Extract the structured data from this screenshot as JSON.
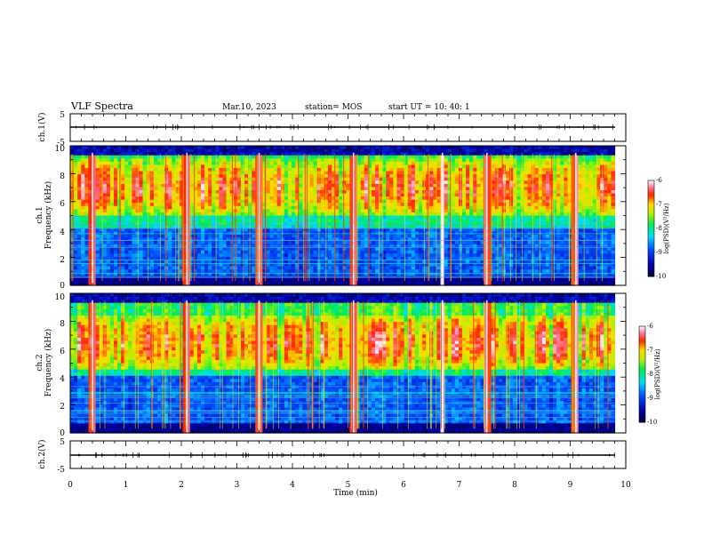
{
  "header": {
    "title": "VLF Spectra",
    "date": "Mar.10, 2023",
    "station": "station= MOS",
    "start": "start  UT  =    10: 40: 1"
  },
  "chart_data": {
    "type": "heatmap",
    "x_label": "Time  (min)",
    "x_range": [
      0,
      10
    ],
    "x_ticks": [
      "0",
      "1",
      "2",
      "3",
      "4",
      "5",
      "6",
      "7",
      "8",
      "9",
      "10"
    ],
    "x_data_extent": [
      0,
      9.8
    ],
    "panels": [
      {
        "id": "ch1_wave",
        "kind": "line",
        "ylabel": "ch.1(V)",
        "ylim": [
          -5,
          5
        ],
        "y_ticks": [
          "5",
          "-5"
        ],
        "baseline": 0
      },
      {
        "id": "ch1_spec",
        "kind": "spectrogram",
        "ylabel_top": "ch.1",
        "ylabel": "Frequency (kHz)",
        "ylim": [
          0,
          10
        ],
        "y_ticks": [
          "0",
          "2",
          "4",
          "6",
          "8",
          "10"
        ],
        "colorbar": {
          "label": "log(PSD)(V²/Hz)",
          "range": [
            -10,
            -6
          ],
          "ticks": [
            "-6",
            "-7",
            "-8",
            "-9",
            "-10"
          ]
        },
        "intense_band_khz": [
          5,
          9
        ],
        "noise_band_khz": [
          0,
          4.5
        ],
        "bright_bursts_min": [
          0.4,
          2.1,
          3.4,
          5.1,
          6.7,
          7.5,
          9.1
        ]
      },
      {
        "id": "ch2_spec",
        "kind": "spectrogram",
        "ylabel_top": "ch.2",
        "ylabel": "Frequency (kHz)",
        "ylim": [
          0,
          10
        ],
        "y_ticks": [
          "0",
          "2",
          "4",
          "6",
          "8",
          "10"
        ],
        "colorbar": {
          "label": "log(PSD)(V²/Hz)",
          "range": [
            -10,
            -6
          ],
          "ticks": [
            "-6",
            "-7",
            "-8",
            "-9",
            "-10"
          ]
        },
        "intense_band_khz": [
          4.5,
          8.5
        ],
        "noise_band_khz": [
          0,
          4
        ],
        "bright_bursts_min": [
          0.4,
          2.1,
          3.4,
          5.1,
          6.7,
          7.5,
          9.1
        ]
      },
      {
        "id": "ch2_wave",
        "kind": "line",
        "ylabel": "ch.2(V)",
        "ylim": [
          -5,
          5
        ],
        "y_ticks": [
          "5",
          "-5"
        ],
        "baseline": 0
      }
    ]
  }
}
